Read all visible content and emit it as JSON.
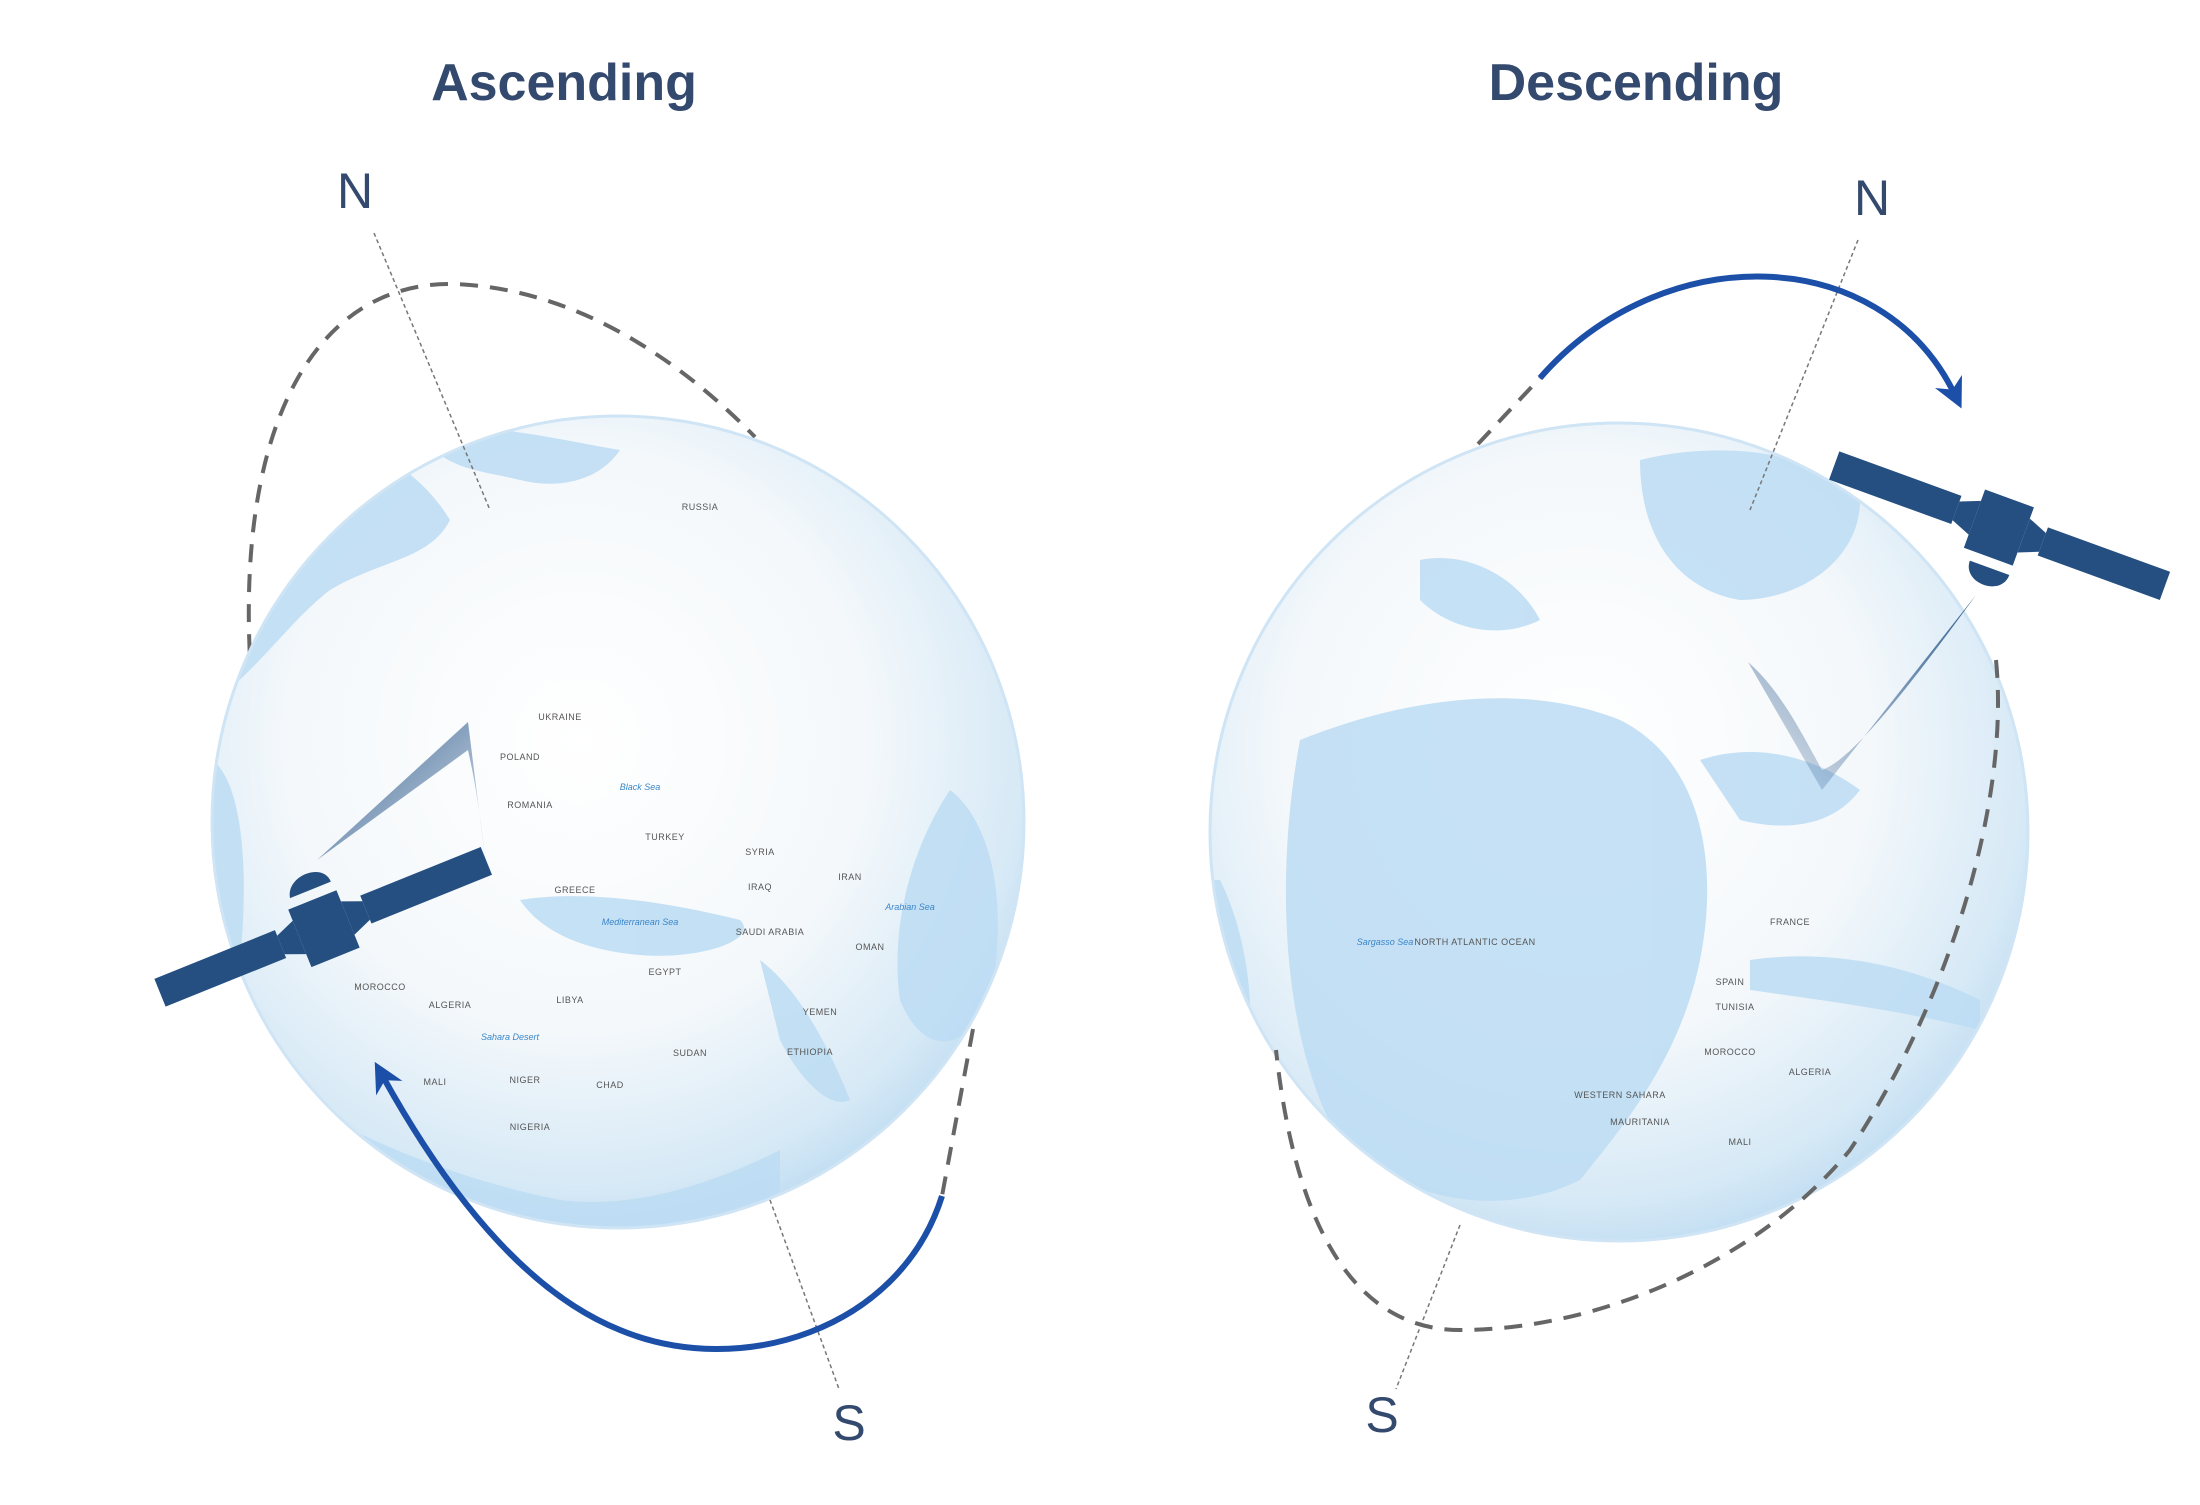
{
  "ascending": {
    "title": "Ascending",
    "north": "N",
    "south": "S",
    "map_labels": [
      "RUSSIA",
      "UKRAINE",
      "POLAND",
      "ROMANIA",
      "GREECE",
      "TURKEY",
      "Black Sea",
      "SYRIA",
      "IRAQ",
      "IRAN",
      "Mediterranean Sea",
      "MOROCCO",
      "ALGERIA",
      "LIBYA",
      "EGYPT",
      "SAUDI ARABIA",
      "YEMEN",
      "OMAN",
      "Arabian Sea",
      "Sahara Desert",
      "MALI",
      "NIGER",
      "CHAD",
      "SUDAN",
      "ETHIOPIA",
      "NIGERIA"
    ]
  },
  "descending": {
    "title": "Descending",
    "north": "N",
    "south": "S",
    "map_labels": [
      "NORTH ATLANTIC OCEAN",
      "Sargasso Sea",
      "FRANCE",
      "SPAIN",
      "MOROCCO",
      "ALGERIA",
      "WESTERN SAHARA",
      "MAURITANIA",
      "MALI",
      "TUNISIA"
    ]
  }
}
